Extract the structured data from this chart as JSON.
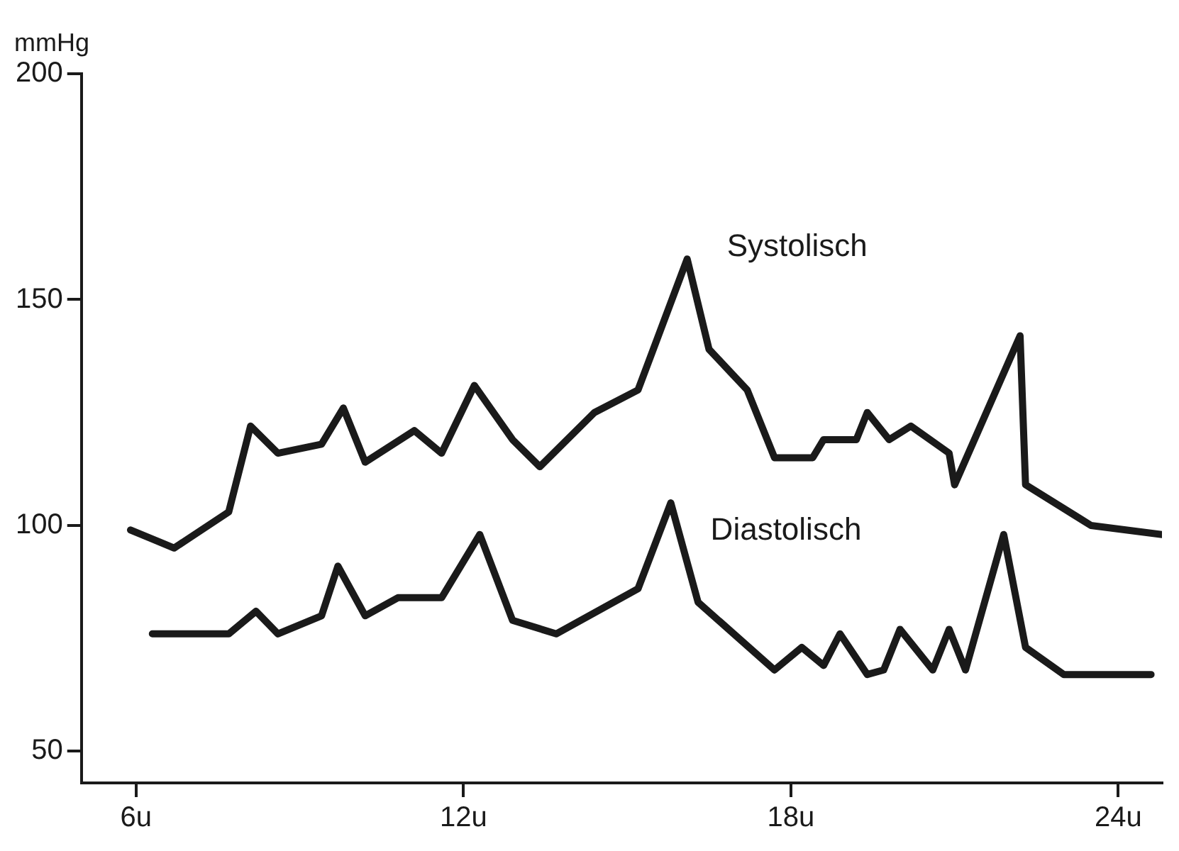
{
  "chart_data": {
    "type": "line",
    "ylabel": "mmHg",
    "xlim": [
      5,
      24.8
    ],
    "ylim": [
      43,
      200
    ],
    "xticks": [
      {
        "value": 6,
        "label": "6u"
      },
      {
        "value": 12,
        "label": "12u"
      },
      {
        "value": 18,
        "label": "18u"
      },
      {
        "value": 24,
        "label": "24u"
      }
    ],
    "yticks": [
      50,
      100,
      150,
      200
    ],
    "grid": false,
    "legend": false,
    "marker": "none",
    "line_style": "solid",
    "series": [
      {
        "name": "Systolisch",
        "color": "#1a1a1a",
        "x": [
          5.9,
          6.7,
          7.7,
          8.1,
          8.6,
          9.4,
          9.8,
          10.2,
          11.1,
          11.6,
          12.2,
          12.9,
          13.4,
          14.4,
          15.2,
          16.1,
          16.5,
          17.2,
          17.7,
          18.4,
          18.6,
          19.2,
          19.4,
          19.8,
          20.2,
          20.9,
          21.0,
          22.2,
          22.3,
          23.5,
          24.8
        ],
        "values": [
          99,
          95,
          103,
          122,
          116,
          118,
          126,
          114,
          121,
          116,
          131,
          119,
          113,
          125,
          130,
          159,
          139,
          130,
          115,
          115,
          119,
          119,
          125,
          119,
          122,
          116,
          109,
          142,
          109,
          100,
          98
        ]
      },
      {
        "name": "Diastolisch",
        "color": "#1a1a1a",
        "x": [
          6.3,
          7.7,
          8.2,
          8.6,
          9.4,
          9.7,
          10.2,
          10.8,
          11.6,
          12.3,
          12.9,
          13.7,
          15.2,
          15.8,
          16.3,
          17.7,
          18.2,
          18.6,
          18.9,
          19.4,
          19.7,
          20.0,
          20.6,
          20.9,
          21.2,
          21.9,
          22.3,
          23.0,
          24.6
        ],
        "values": [
          76,
          76,
          81,
          76,
          80,
          91,
          80,
          84,
          84,
          98,
          79,
          76,
          86,
          105,
          83,
          68,
          73,
          69,
          76,
          67,
          68,
          77,
          68,
          77,
          68,
          98,
          73,
          67,
          67
        ]
      }
    ]
  }
}
